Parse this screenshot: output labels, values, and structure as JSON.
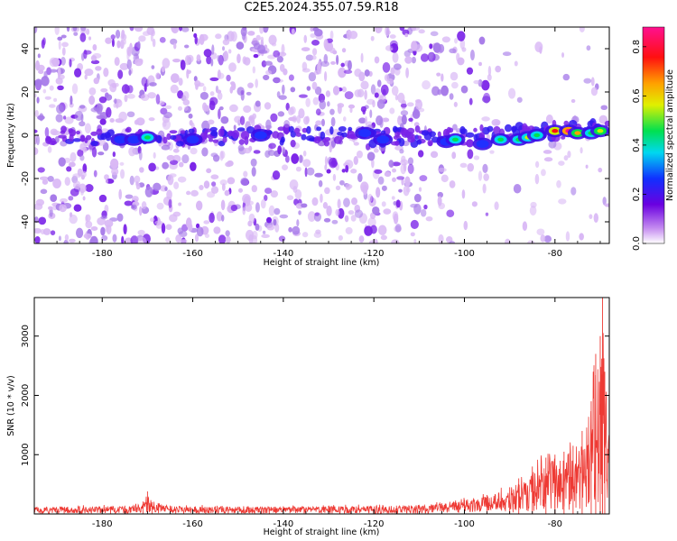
{
  "title": "C2E5.2024.355.07.59.R18",
  "colors": {
    "blob_light": "#d9b8f5",
    "blob_mid": "#a77be9",
    "blob_dark": "#7a22e8",
    "line": "#ee3a34"
  },
  "chart_data": [
    {
      "type": "heatmap",
      "xlabel": "Height of straight line (km)",
      "ylabel": "Frequency (Hz)",
      "xlim": [
        -195,
        -68
      ],
      "ylim": [
        -50,
        50
      ],
      "xticks": [
        -180,
        -160,
        -140,
        -120,
        -100,
        -80
      ],
      "yticks": [
        -40,
        -20,
        0,
        20,
        40
      ],
      "colorbar": {
        "label": "Normalized spectral amplitude",
        "range": [
          0.0,
          0.88
        ],
        "ticks": [
          "0.0",
          "0.2",
          "0.4",
          "0.6",
          "0.8"
        ],
        "colormap": "rainbow (white - violet - blue - cyan - green - yellow - red - magenta)"
      },
      "hotspots": [
        {
          "x": -176,
          "y": -2,
          "v": 0.15
        },
        {
          "x": -173,
          "y": -2,
          "v": 0.2
        },
        {
          "x": -170,
          "y": -1,
          "v": 0.4
        },
        {
          "x": -160,
          "y": -2,
          "v": 0.12
        },
        {
          "x": -145,
          "y": 0,
          "v": 0.35
        },
        {
          "x": -122,
          "y": 1,
          "v": 0.2
        },
        {
          "x": -118,
          "y": -2,
          "v": 0.35
        },
        {
          "x": -104,
          "y": -3,
          "v": 0.3
        },
        {
          "x": -102,
          "y": -2,
          "v": 0.4
        },
        {
          "x": -96,
          "y": -4,
          "v": 0.3
        },
        {
          "x": -92,
          "y": -2,
          "v": 0.4
        },
        {
          "x": -88,
          "y": -2,
          "v": 0.45
        },
        {
          "x": -86,
          "y": -1,
          "v": 0.5
        },
        {
          "x": -84,
          "y": 0,
          "v": 0.45
        },
        {
          "x": -80,
          "y": 2,
          "v": 0.75
        },
        {
          "x": -77,
          "y": 2,
          "v": 0.88
        },
        {
          "x": -75,
          "y": 1,
          "v": 0.6
        },
        {
          "x": -72,
          "y": 1,
          "v": 0.45
        },
        {
          "x": -70,
          "y": 2,
          "v": 0.55
        }
      ],
      "grid": false
    },
    {
      "type": "line",
      "xlabel": "Height of straight line (km)",
      "ylabel": "SNR (10 * v/v)",
      "xlim": [
        -195,
        -68
      ],
      "ylim": [
        0,
        3650
      ],
      "xticks": [
        -180,
        -160,
        -140,
        -120,
        -100,
        -80
      ],
      "yticks": [
        1000,
        2000,
        3000
      ],
      "series": [
        {
          "x": [
            -195,
            -185,
            -175,
            -171,
            -170,
            -169,
            -165,
            -155,
            -140,
            -130,
            -115,
            -105,
            -100,
            -95,
            -90,
            -88,
            -85,
            -82,
            -80,
            -78,
            -76,
            -74,
            -72,
            -71,
            -70,
            -69.5,
            -69,
            -68
          ],
          "y": [
            120,
            130,
            140,
            210,
            380,
            200,
            140,
            130,
            130,
            135,
            140,
            180,
            240,
            320,
            450,
            600,
            800,
            950,
            1000,
            1050,
            1150,
            1400,
            1900,
            2700,
            3000,
            3650,
            2400,
            1800
          ]
        }
      ],
      "grid": false
    }
  ]
}
